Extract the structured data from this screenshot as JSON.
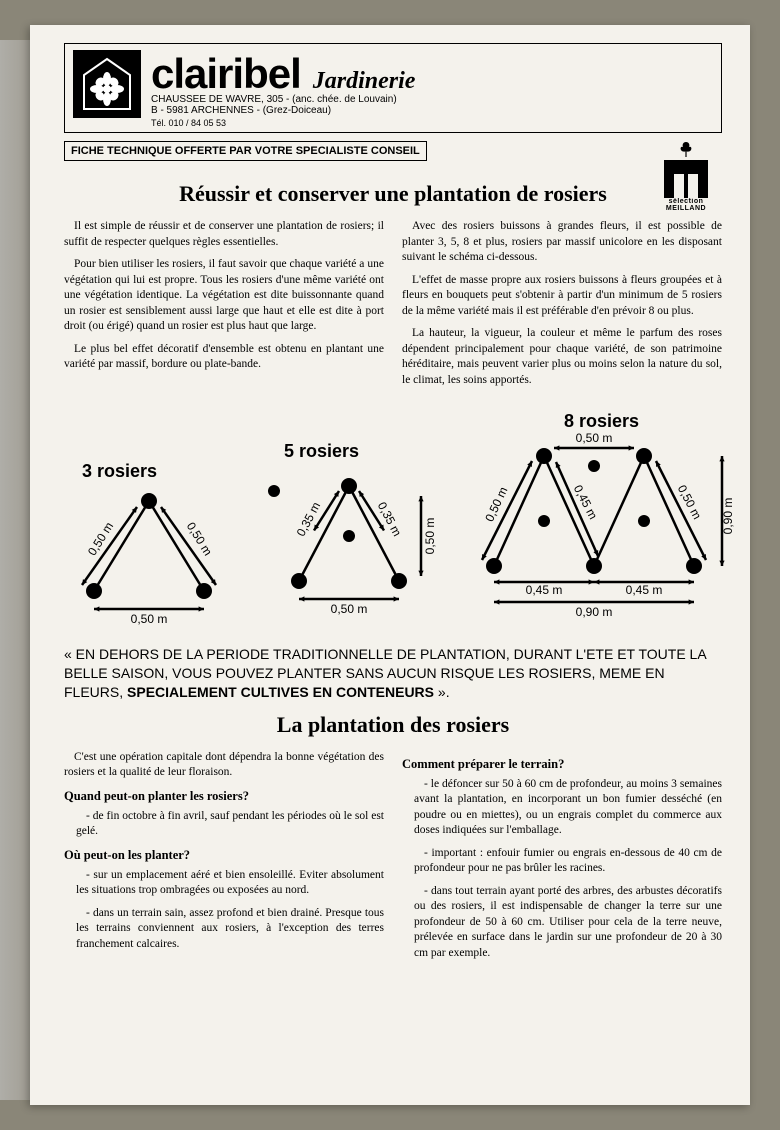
{
  "header": {
    "brand": "clairibel",
    "sub": "Jardinerie",
    "address": "CHAUSSEE DE WAVRE, 305 - (anc. chée. de Louvain)\nB - 5981 ARCHENNES - (Grez-Doiceau)",
    "tel": "Tél. 010 / 84 05 53"
  },
  "meilland": {
    "top": "sélection",
    "bottom": "MEILLAND"
  },
  "fiche": "FICHE TECHNIQUE OFFERTE PAR VOTRE SPECIALISTE CONSEIL",
  "title1": "Réussir et conserver une plantation de rosiers",
  "intro": {
    "left": [
      "Il est simple de réussir et de conserver une plantation de rosiers; il suffit de respecter quelques règles essentielles.",
      "Pour bien utiliser les rosiers, il faut savoir que chaque variété a une végétation qui lui est propre. Tous les rosiers d'une même variété ont une végétation identique. La végétation est dite buissonnante quand un rosier est sensiblement aussi large que haut et elle est dite à port droit (ou érigé) quand un rosier est plus haut que large.",
      "Le plus bel effet décoratif d'ensemble est obtenu en plantant une variété par massif, bordure ou plate-bande."
    ],
    "right": [
      "Avec des rosiers buissons à grandes fleurs, il est possible de planter 3, 5, 8 et plus, rosiers par massif unicolore en les disposant suivant le schéma ci-dessous.",
      "L'effet de masse propre aux rosiers buissons à fleurs groupées et à fleurs en bouquets peut s'obtenir à partir d'un minimum de 5 rosiers de la même variété mais il est préférable d'en prévoir 8 ou plus.",
      "La hauteur, la vigueur, la couleur et même le parfum des roses dépendent principalement pour chaque variété, de son patrimoine héréditaire, mais peuvent varier plus ou moins selon la nature du sol, le climat, les soins apportés."
    ]
  },
  "diagrams": {
    "t3": {
      "title": "3 rosiers",
      "side": "0,50 m",
      "base": "0,50 m"
    },
    "t5": {
      "title": "5 rosiers",
      "side": "0,35 m",
      "mid": "0,50 m",
      "base": "0,50 m"
    },
    "t8": {
      "title": "8 rosiers",
      "side": "0,50 m",
      "inner": "0,45 m",
      "base_inner": "0,45 m",
      "right": "0,90 m",
      "base_outer": "0,90 m"
    }
  },
  "callout": {
    "prefix": "« EN DEHORS DE LA PERIODE TRADITIONNELLE DE PLANTATION, DURANT L'ETE ET TOUTE LA BELLE SAISON, VOUS POUVEZ PLANTER SANS AUCUN RISQUE LES ROSIERS, MEME EN FLEURS, ",
    "bold": "SPECIALEMENT CULTIVES EN CONTENEURS",
    "suffix": " »."
  },
  "title2": "La plantation des rosiers",
  "planting": {
    "left": {
      "intro": "C'est une opération capitale dont dépendra la bonne végétation des rosiers et la qualité de leur floraison.",
      "q1": "Quand peut-on planter les rosiers?",
      "a1": "de fin octobre à fin avril, sauf pendant les périodes où le sol est gelé.",
      "q2": "Où peut-on les planter?",
      "a2a": "sur un emplacement aéré et bien ensoleillé. Eviter absolument les situations trop ombragées ou exposées au nord.",
      "a2b": "dans un terrain sain, assez profond et bien drainé. Presque tous les terrains conviennent aux rosiers, à l'exception des terres franchement calcaires."
    },
    "right": {
      "q3": "Comment préparer le terrain?",
      "a3a": "le défoncer sur 50 à 60 cm de profondeur, au moins 3 semaines avant la plantation, en incorporant un bon fumier desséché (en poudre ou en miettes), ou un engrais complet du commerce aux doses indiquées sur l'emballage.",
      "a3b": "important : enfouir fumier ou engrais en-dessous de 40 cm de profondeur pour ne pas brûler les racines.",
      "a3c": "dans tout terrain ayant porté des arbres, des arbustes décoratifs ou des rosiers, il est indispensable de changer la terre sur une profondeur de 50 à 60 cm. Utiliser pour cela de la terre neuve, prélevée en surface dans le jardin sur une profondeur de 20 à 30 cm par exemple."
    }
  },
  "style": {
    "node_color": "#000000",
    "node_radius": 8,
    "line_width": 2.5,
    "extra_dot_radius": 6,
    "font_label": 12
  }
}
